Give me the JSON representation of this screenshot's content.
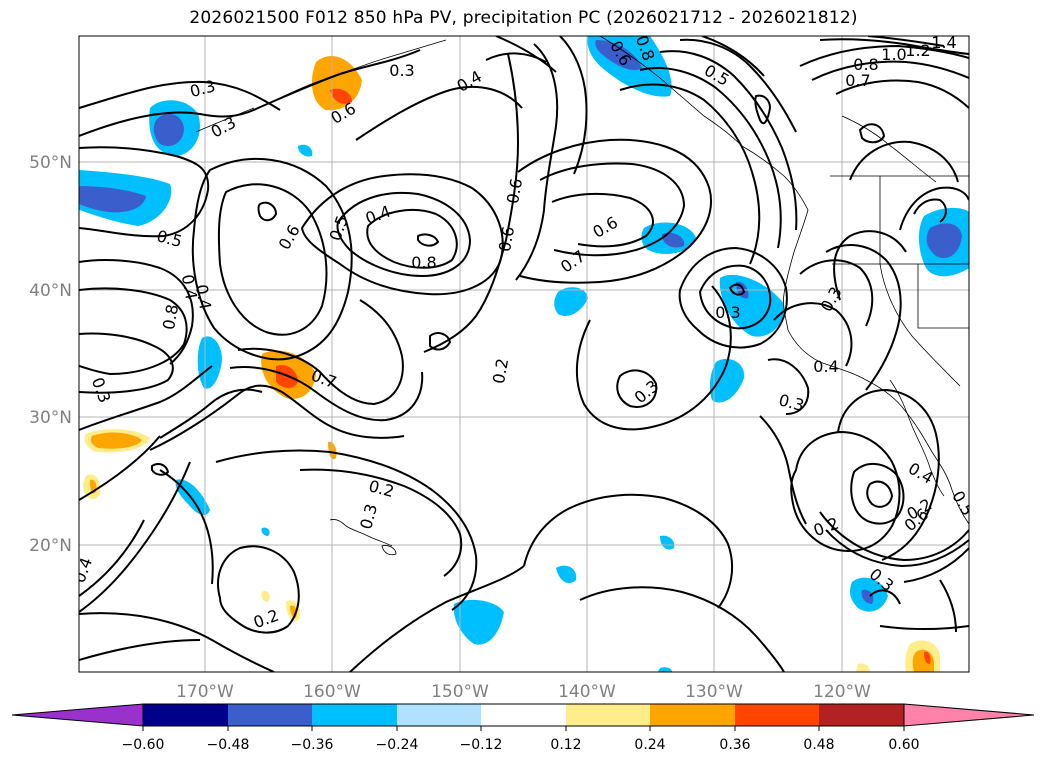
{
  "title": "2026021500 F012 850 hPa PV, precipitation PC (2026021712 - 2026021812)",
  "lat_labels": [
    "50°N",
    "40°N",
    "30°N",
    "20°N"
  ],
  "lon_labels": [
    "170°W",
    "160°W",
    "150°W",
    "140°W",
    "130°W",
    "120°W"
  ],
  "contour_labels": [
    "0.3",
    "0.3",
    "0.6",
    "0.4",
    "0.5",
    "0.8",
    "0.7",
    "1.0",
    "1.2",
    "1.4",
    "0.3",
    "0.6",
    "0.8",
    "0.5",
    "0.4",
    "0.8",
    "0.4",
    "0.3",
    "0.6",
    "0.7",
    "0.5",
    "0.4",
    "0.8",
    "0.6",
    "0.6",
    "0.7",
    "0.6",
    "0.2",
    "0.3",
    "0.3",
    "0.3",
    "0.4",
    "0.3",
    "0.2",
    "0.3",
    "0.2",
    "0.2",
    "0.4",
    "0.5",
    "0.6",
    "0.4",
    "0.2",
    "0.3"
  ],
  "colorbar": {
    "ticks": [
      "−0.60",
      "−0.48",
      "−0.36",
      "−0.24",
      "−0.12",
      "0.12",
      "0.24",
      "0.36",
      "0.48",
      "0.60"
    ],
    "colors": [
      "#9932cc",
      "#00008b",
      "#3a5fcd",
      "#00bfff",
      "#b0e2ff",
      "#ffffff",
      "#ffec8b",
      "#ffa500",
      "#ff4500",
      "#b22222",
      "#ff82ab"
    ]
  }
}
